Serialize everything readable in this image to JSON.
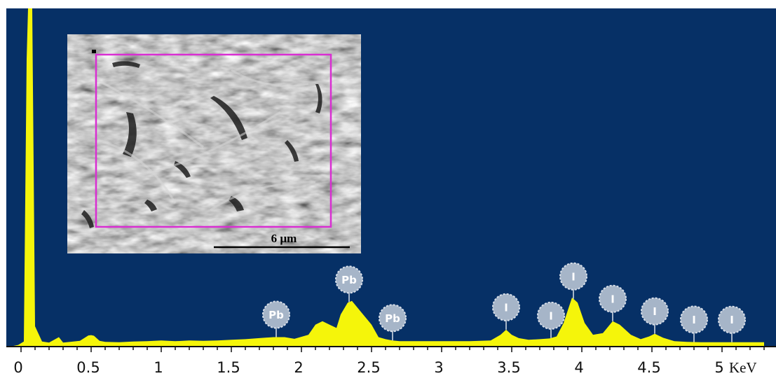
{
  "chart_data": {
    "type": "line",
    "title": "",
    "xlabel": "",
    "ylabel": "",
    "x_unit": "KeV",
    "xlim": [
      -0.08,
      5.3
    ],
    "ylim": [
      0,
      100
    ],
    "x_ticks": [
      "0",
      "0.5",
      "1",
      "1.5",
      "2",
      "2.5",
      "3",
      "3.5",
      "4",
      "4.5",
      "5"
    ],
    "grid": false,
    "series": [
      {
        "fill_color": "#f5f50a",
        "x": [
          -0.08,
          -0.02,
          0.02,
          0.04,
          0.05,
          0.08,
          0.1,
          0.15,
          0.2,
          0.27,
          0.3,
          0.35,
          0.42,
          0.48,
          0.5,
          0.52,
          0.56,
          0.6,
          0.7,
          0.8,
          0.9,
          1.0,
          1.1,
          1.2,
          1.3,
          1.4,
          1.5,
          1.6,
          1.7,
          1.8,
          1.88,
          1.95,
          2.05,
          2.1,
          2.15,
          2.2,
          2.25,
          2.28,
          2.33,
          2.36,
          2.39,
          2.43,
          2.5,
          2.55,
          2.6,
          2.65,
          2.7,
          2.8,
          3.0,
          3.2,
          3.35,
          3.42,
          3.46,
          3.5,
          3.55,
          3.62,
          3.7,
          3.77,
          3.82,
          3.87,
          3.93,
          3.97,
          4.02,
          4.08,
          4.15,
          4.22,
          4.27,
          4.35,
          4.42,
          4.48,
          4.52,
          4.58,
          4.66,
          4.75,
          4.85,
          4.95,
          5.05,
          5.15,
          5.3
        ],
        "y": [
          0,
          0.5,
          1.5,
          85,
          100,
          100,
          6,
          1.5,
          1.2,
          2.8,
          1.2,
          1.4,
          1.7,
          3.3,
          3.4,
          3.2,
          1.7,
          1.4,
          1.3,
          1.5,
          1.6,
          1.8,
          1.6,
          1.8,
          1.7,
          1.8,
          2.0,
          2.2,
          2.5,
          2.8,
          2.8,
          2.3,
          3.5,
          6.5,
          7.5,
          6.5,
          5.5,
          9.5,
          13,
          13.5,
          12,
          10,
          6.5,
          2.8,
          2.2,
          1.8,
          1.6,
          1.6,
          1.6,
          1.6,
          1.8,
          3.5,
          5.0,
          3.5,
          2.5,
          2.0,
          2.2,
          2.4,
          3.0,
          7.0,
          14.5,
          13.0,
          7.0,
          3.5,
          4.0,
          7.5,
          6.5,
          3.5,
          2.2,
          3.0,
          3.8,
          2.6,
          1.6,
          1.4,
          1.3,
          1.3,
          1.3,
          1.3,
          1.3
        ]
      }
    ],
    "annotations": [
      {
        "label": "Pb",
        "x": 1.82
      },
      {
        "label": "Pb",
        "x": 2.34
      },
      {
        "label": "Pb",
        "x": 2.65
      },
      {
        "label": "I",
        "x": 3.46
      },
      {
        "label": "I",
        "x": 3.78
      },
      {
        "label": "I",
        "x": 3.94
      },
      {
        "label": "I",
        "x": 4.22
      },
      {
        "label": "I",
        "x": 4.52
      },
      {
        "label": "I",
        "x": 4.8
      },
      {
        "label": "I",
        "x": 5.07
      }
    ],
    "inset": {
      "kind": "micrograph",
      "scale_bar_label": "6 µm"
    }
  },
  "colors": {
    "plot_background": "#063066",
    "spectrum_fill": "#f5f50a",
    "badge_fill": "#a6b5c8",
    "badge_text": "#ffffff",
    "selection_box": "#d92ed2",
    "axis": "#111111"
  }
}
